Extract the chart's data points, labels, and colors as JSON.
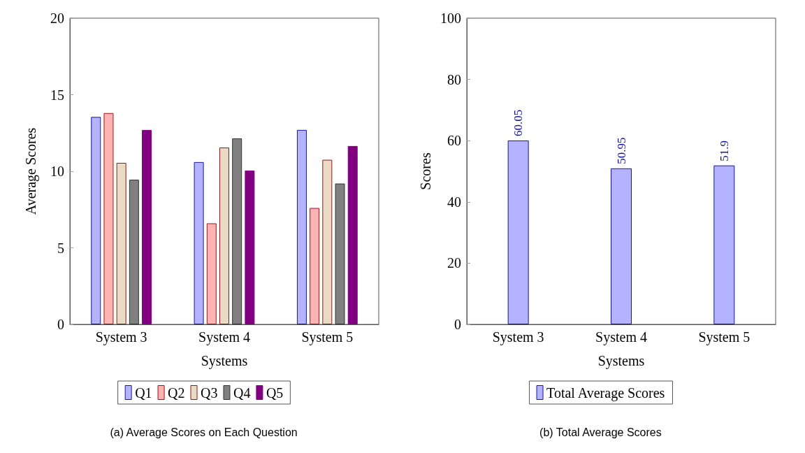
{
  "chart_data": [
    {
      "type": "bar",
      "xlabel": "Systems",
      "ylabel": "Average Scores",
      "categories": [
        "System 3",
        "System 4",
        "System 5"
      ],
      "series": [
        {
          "name": "Q1",
          "color": "#b3b3ff",
          "values": [
            13.55,
            10.6,
            12.7
          ]
        },
        {
          "name": "Q2",
          "color": "#ffb3b3",
          "values": [
            13.8,
            6.6,
            7.6
          ]
        },
        {
          "name": "Q3",
          "color": "#ead9c4",
          "values": [
            10.55,
            11.55,
            10.75
          ]
        },
        {
          "name": "Q4",
          "color": "#808080",
          "values": [
            9.45,
            12.15,
            9.2
          ]
        },
        {
          "name": "Q5",
          "color": "#800080",
          "values": [
            12.7,
            10.05,
            11.65
          ]
        }
      ],
      "ylim": [
        0,
        20
      ],
      "yticks": [
        0,
        5,
        10,
        15,
        20
      ],
      "grid": false,
      "legend": "bottom",
      "annotations": [
        "(a) Average Scores on Each Question"
      ]
    },
    {
      "type": "bar",
      "xlabel": "Systems",
      "ylabel": "Scores",
      "categories": [
        "System 3",
        "System 4",
        "System 5"
      ],
      "series": [
        {
          "name": "Total Average Scores",
          "color": "#b3b3ff",
          "values": [
            60.05,
            50.95,
            51.9
          ]
        }
      ],
      "ylim": [
        0,
        100
      ],
      "yticks": [
        0,
        20,
        40,
        60,
        80,
        100
      ],
      "grid": false,
      "legend": "bottom",
      "data_labels": true,
      "annotations": [
        "(b) Total Average Scores"
      ]
    }
  ]
}
